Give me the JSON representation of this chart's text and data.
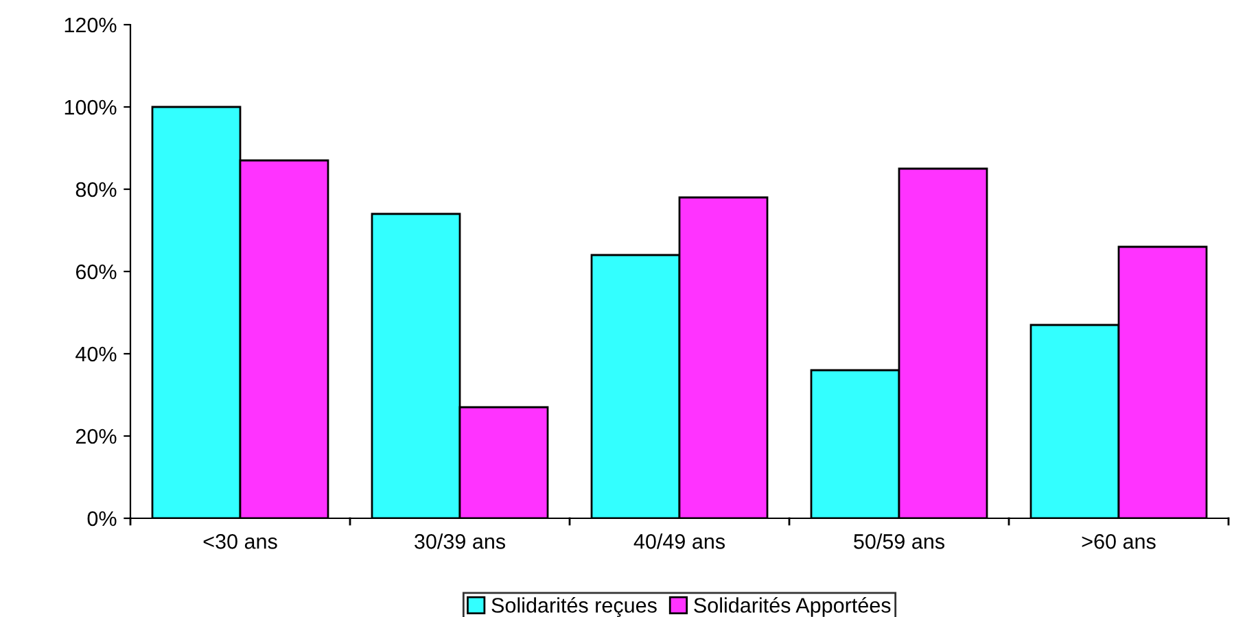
{
  "chart_data": {
    "type": "bar",
    "categories": [
      "<30 ans",
      "30/39 ans",
      "40/49 ans",
      "50/59 ans",
      ">60 ans"
    ],
    "series": [
      {
        "name": "Solidarités reçues",
        "color": "#33ffff",
        "values": [
          100,
          74,
          64,
          36,
          47
        ]
      },
      {
        "name": "Solidarités Apportées",
        "color": "#ff33ff",
        "values": [
          87,
          27,
          78,
          85,
          66
        ]
      }
    ],
    "ylim": [
      0,
      120
    ],
    "yticks": [
      {
        "value": 0,
        "label": "0%"
      },
      {
        "value": 20,
        "label": "20%"
      },
      {
        "value": 40,
        "label": "40%"
      },
      {
        "value": 60,
        "label": "60%"
      },
      {
        "value": 80,
        "label": "80%"
      },
      {
        "value": 100,
        "label": "100%"
      },
      {
        "value": 120,
        "label": "120%"
      }
    ],
    "grid": false,
    "legend": "bottom"
  }
}
